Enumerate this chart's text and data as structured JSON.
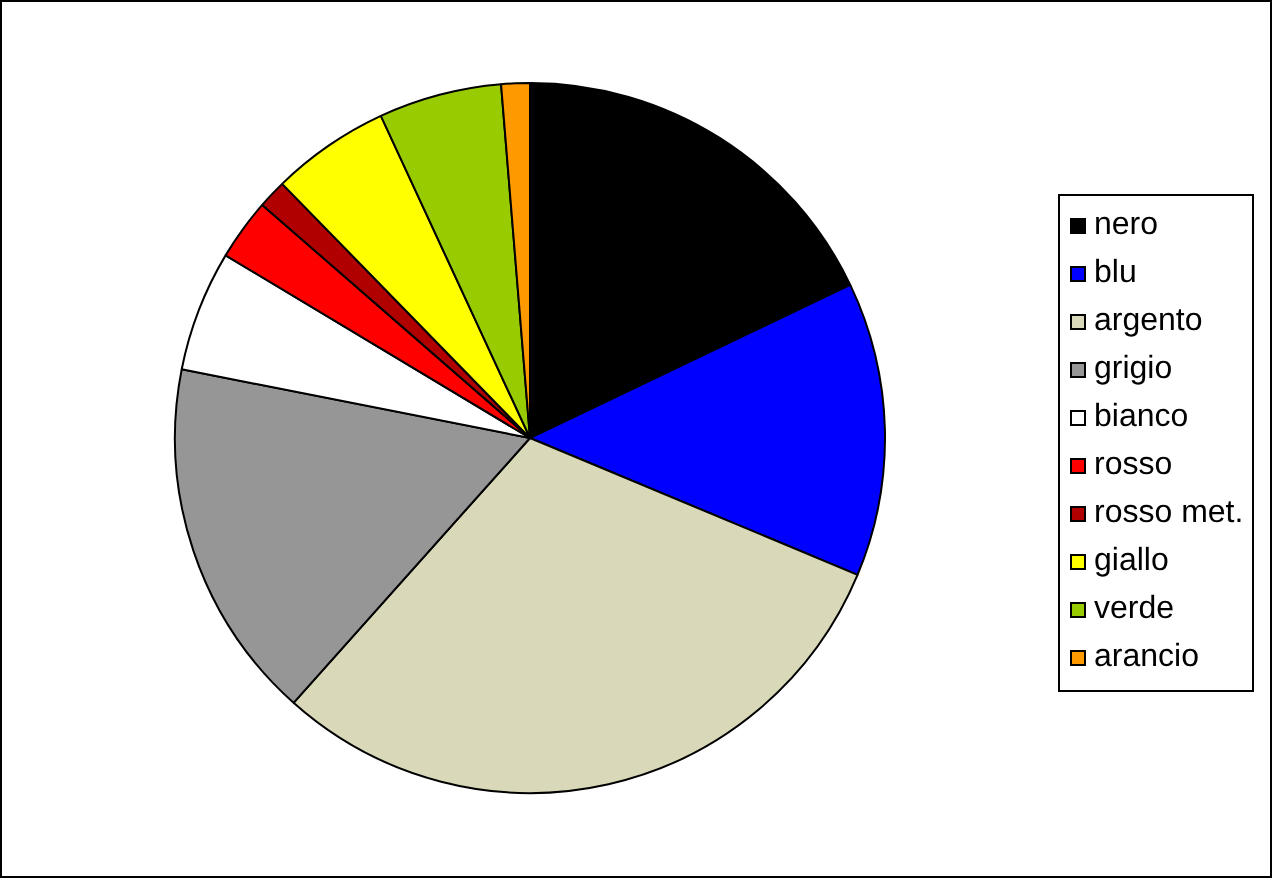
{
  "chart_data": {
    "type": "pie",
    "categories": [
      "nero",
      "blu",
      "argento",
      "grigio",
      "bianco",
      "rosso",
      "rosso met.",
      "giallo",
      "verde",
      "arancio"
    ],
    "values": [
      17.9,
      13.4,
      30.3,
      16.5,
      5.5,
      2.8,
      1.3,
      5.4,
      5.6,
      1.3
    ],
    "colors": [
      "#000000",
      "#0000ff",
      "#d9d9b9",
      "#969696",
      "#ffffff",
      "#ff0000",
      "#b00000",
      "#ffff00",
      "#99cc00",
      "#ff9900"
    ],
    "legend": "right"
  }
}
